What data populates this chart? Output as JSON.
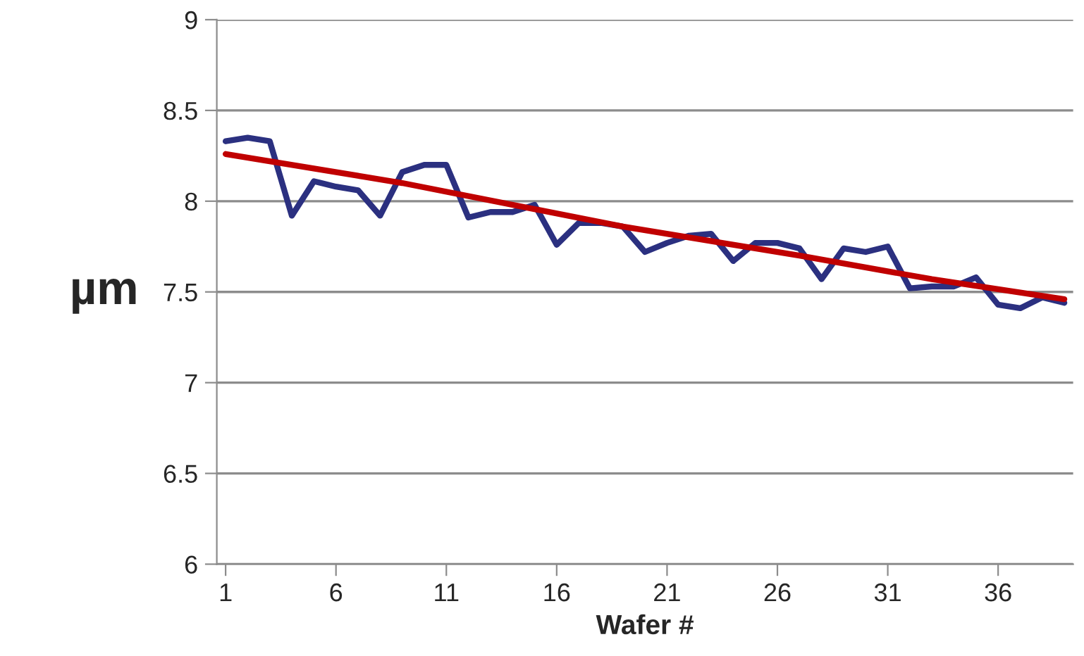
{
  "chart_data": {
    "type": "line",
    "xlabel": "Wafer #",
    "ylabel": "µm",
    "x": [
      1,
      2,
      3,
      4,
      5,
      6,
      7,
      8,
      9,
      10,
      11,
      12,
      13,
      14,
      15,
      16,
      17,
      18,
      19,
      20,
      21,
      22,
      23,
      24,
      25,
      26,
      27,
      28,
      29,
      30,
      31,
      32,
      33,
      34,
      35,
      36,
      37,
      38,
      39
    ],
    "series": [
      {
        "color": "#2b3080",
        "values": [
          8.33,
          8.35,
          8.33,
          7.92,
          8.11,
          8.08,
          8.06,
          7.92,
          8.16,
          8.2,
          8.2,
          7.91,
          7.94,
          7.94,
          7.98,
          7.76,
          7.88,
          7.88,
          7.86,
          7.72,
          7.77,
          7.81,
          7.82,
          7.67,
          7.77,
          7.77,
          7.74,
          7.57,
          7.74,
          7.72,
          7.75,
          7.52,
          7.53,
          7.53,
          7.58,
          7.43,
          7.41,
          7.47,
          7.44
        ]
      },
      {
        "color": "#c00000",
        "x": [
          1,
          9,
          19,
          27,
          33,
          39
        ],
        "values": [
          8.26,
          8.1,
          7.86,
          7.7,
          7.57,
          7.46
        ]
      }
    ],
    "xlim": [
      0.6,
      39.4
    ],
    "xticks": [
      1,
      6,
      11,
      16,
      21,
      26,
      31,
      36
    ],
    "ylim": [
      6,
      9
    ],
    "yticks": [
      6,
      6.5,
      7,
      7.5,
      8,
      8.5,
      9
    ],
    "grid": "y",
    "marker": "none",
    "line_style": "solid",
    "legend": false
  }
}
